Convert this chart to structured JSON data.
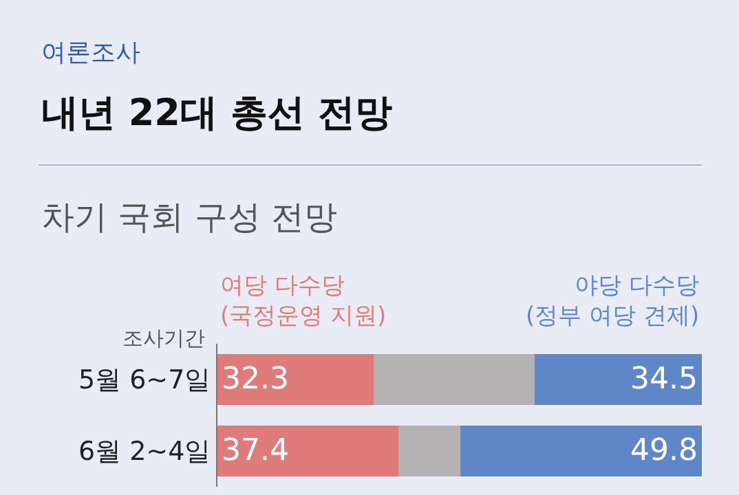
{
  "chart_data": {
    "type": "bar",
    "orientation": "horizontal",
    "stacked": true,
    "title": "내년 22대 총선 전망",
    "subtitle": "차기 국회 구성 전망",
    "annotations": [
      "여론조사",
      "조사기간"
    ],
    "categories": [
      "5월 6~7일",
      "6월 2~4일"
    ],
    "xlim": [
      0,
      100
    ],
    "series": [
      {
        "name": "여당 다수당\n(국정운영 지원)",
        "color": "#e07b7b",
        "values": [
          32.3,
          37.4
        ],
        "value_labels": [
          "32.3",
          "37.4"
        ]
      },
      {
        "color": "#b3b1b2",
        "values": [
          33.2,
          12.8
        ],
        "value_labels": [
          null,
          null
        ]
      },
      {
        "name": "야당 다수당\n(정부 여당 견제)",
        "color": "#5f87c8",
        "values": [
          34.5,
          49.8
        ],
        "value_labels": [
          "34.5",
          "49.8"
        ]
      }
    ],
    "legend": false,
    "grid": false,
    "tick_labels": "y"
  }
}
